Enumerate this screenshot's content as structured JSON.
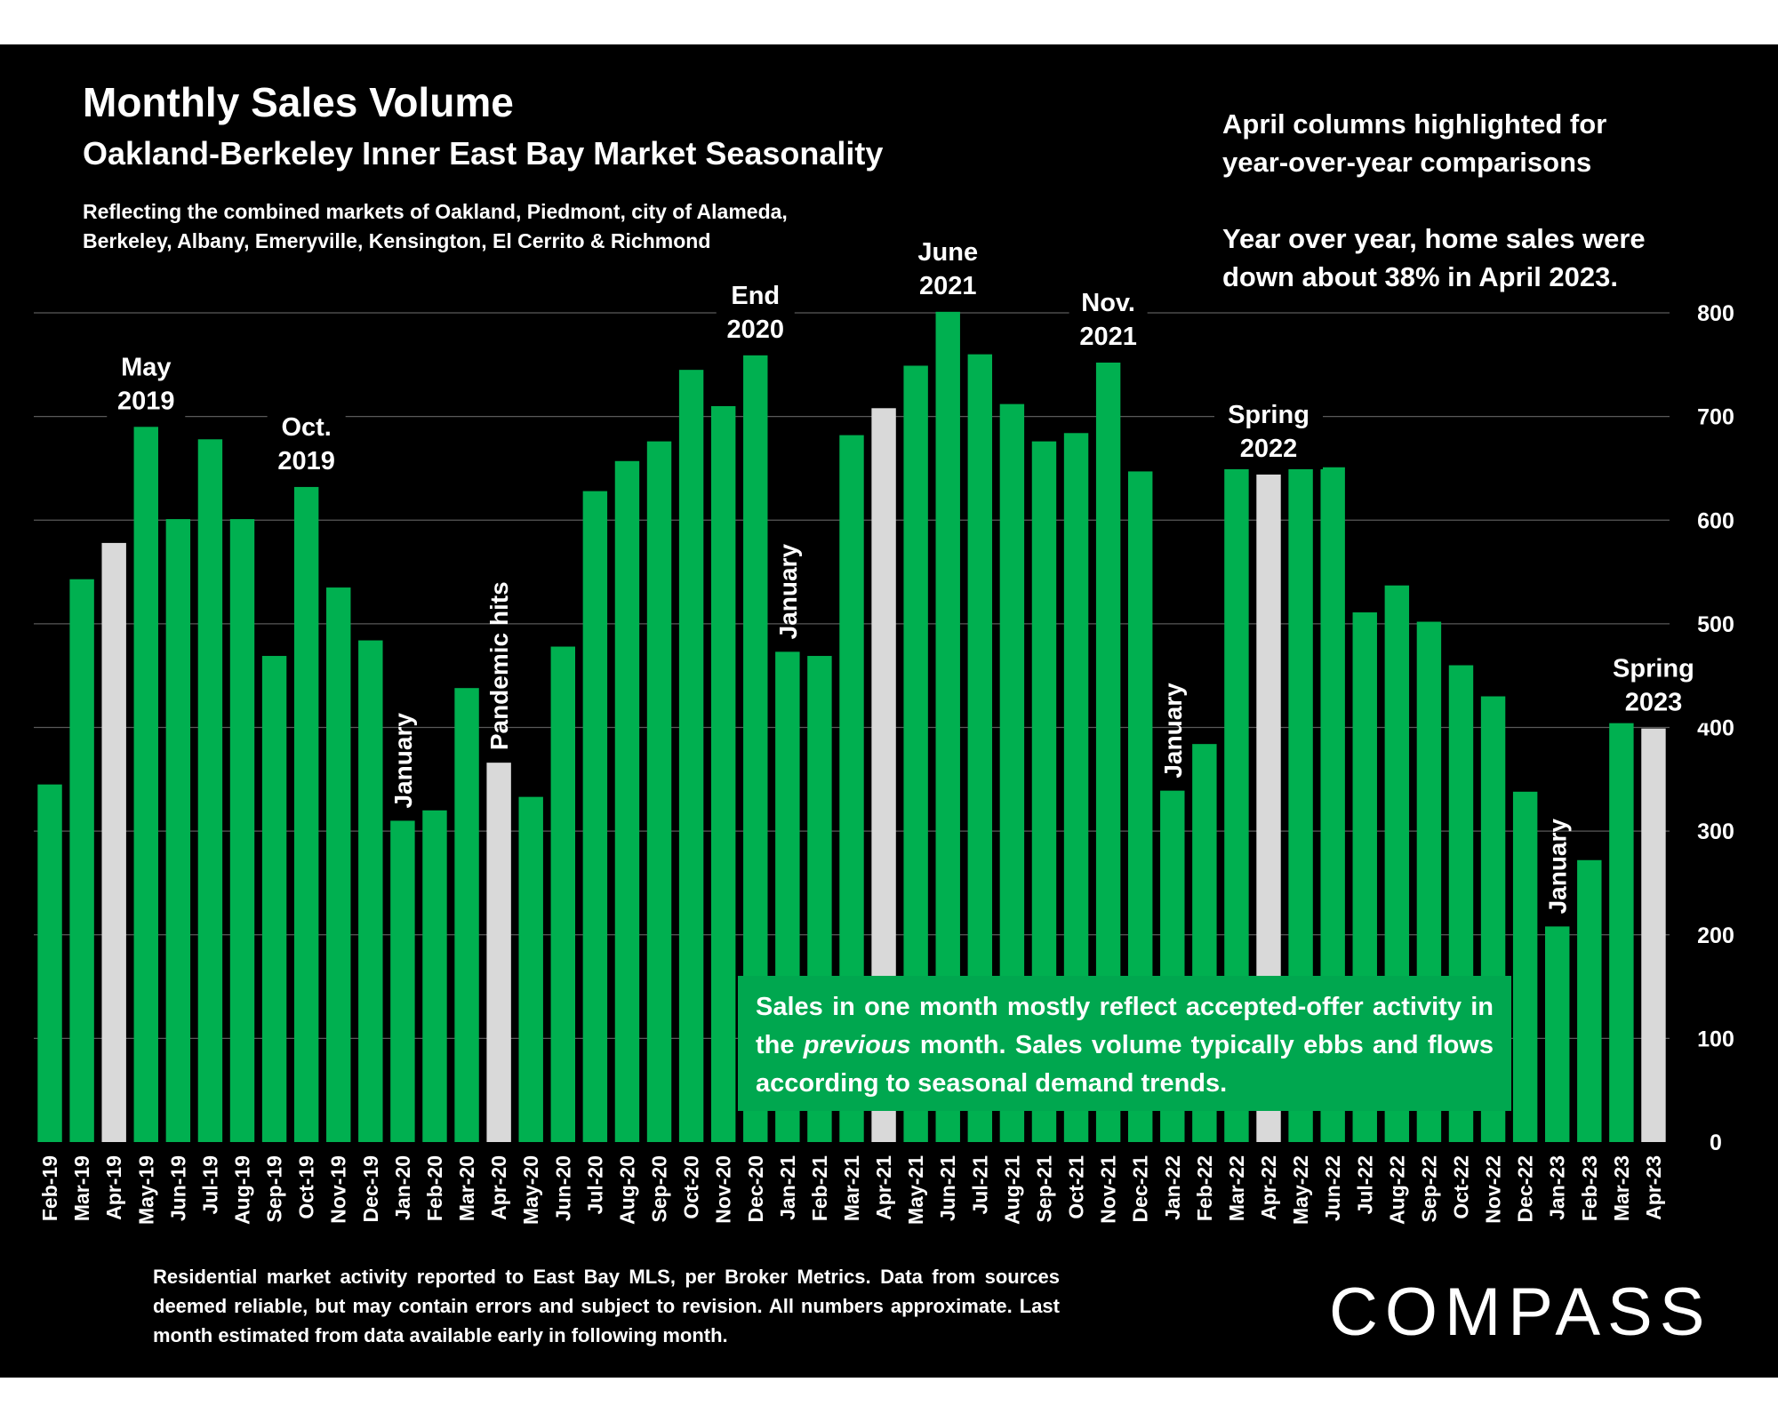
{
  "title": "Monthly Sales Volume",
  "subtitle": "Oakland-Berkeley Inner East Bay Market Seasonality",
  "note": "Reflecting the combined markets of Oakland, Piedmont, city of Alameda,\nBerkeley, Albany, Emeryville, Kensington, El Cerrito & Richmond",
  "side_note": "April columns highlighted for\nyear-over-year comparisons\n\nYear over year, home sales were\ndown about 38% in April 2023.",
  "callout": {
    "part1": "Sales in one month mostly reflect accepted-offer activity in the ",
    "emphasis": "previous",
    "part2": " month. Sales volume typically ebbs and flows according to seasonal demand trends."
  },
  "footer": "Residential market activity reported to East Bay MLS, per Broker Metrics. Data from sources deemed reliable, but may contain errors and subject to revision. All numbers approximate. Last month estimated from data available early in following month.",
  "logo": "COMPASS",
  "colors": {
    "background": "#000000",
    "bar": "#00b050",
    "highlight": "#d9d9d9",
    "text": "#ffffff",
    "grid": "#595959"
  },
  "chart_data": {
    "type": "bar",
    "title": "Monthly Sales Volume",
    "subtitle": "Oakland-Berkeley Inner East Bay Market Seasonality",
    "ylim": [
      0,
      800
    ],
    "yticks": [
      0,
      100,
      200,
      300,
      400,
      500,
      600,
      700,
      800
    ],
    "grid": true,
    "y_axis_side": "right",
    "categories": [
      "Feb-19",
      "Mar-19",
      "Apr-19",
      "May-19",
      "Jun-19",
      "Jul-19",
      "Aug-19",
      "Sep-19",
      "Oct-19",
      "Nov-19",
      "Dec-19",
      "Jan-20",
      "Feb-20",
      "Mar-20",
      "Apr-20",
      "May-20",
      "Jun-20",
      "Jul-20",
      "Aug-20",
      "Sep-20",
      "Oct-20",
      "Nov-20",
      "Dec-20",
      "Jan-21",
      "Feb-21",
      "Mar-21",
      "Apr-21",
      "May-21",
      "Jun-21",
      "Jul-21",
      "Aug-21",
      "Sep-21",
      "Oct-21",
      "Nov-21",
      "Dec-21",
      "Jan-22",
      "Feb-22",
      "Mar-22",
      "Apr-22",
      "May-22",
      "Jun-22",
      "Jul-22",
      "Aug-22",
      "Sep-22",
      "Oct-22",
      "Nov-22",
      "Dec-22",
      "Jan-23",
      "Feb-23",
      "Mar-23",
      "Apr-23"
    ],
    "values": [
      345,
      543,
      578,
      690,
      601,
      678,
      601,
      469,
      632,
      535,
      484,
      310,
      320,
      438,
      366,
      333,
      478,
      628,
      657,
      676,
      745,
      710,
      759,
      473,
      469,
      682,
      708,
      749,
      801,
      760,
      712,
      676,
      684,
      752,
      647,
      339,
      384,
      664,
      644,
      686,
      651,
      511,
      537,
      502,
      460,
      430,
      338,
      208,
      272,
      423,
      399
    ],
    "highlighted": [
      "Apr-19",
      "Apr-20",
      "Apr-21",
      "Apr-22",
      "Apr-23"
    ],
    "annotations": [
      {
        "text": "May\n2019",
        "category": "May-19",
        "orientation": "horizontal"
      },
      {
        "text": "Oct.\n2019",
        "category": "Oct-19",
        "orientation": "horizontal"
      },
      {
        "text": "January",
        "category": "Jan-20",
        "orientation": "vertical"
      },
      {
        "text": "Pandemic hits",
        "category": "Apr-20",
        "orientation": "vertical"
      },
      {
        "text": "End\n2020",
        "category": "Dec-20",
        "orientation": "horizontal"
      },
      {
        "text": "January",
        "category": "Jan-21",
        "orientation": "vertical"
      },
      {
        "text": "June\n2021",
        "category": "Jun-21",
        "orientation": "horizontal"
      },
      {
        "text": "Nov.\n2021",
        "category": "Nov-21",
        "orientation": "horizontal"
      },
      {
        "text": "January",
        "category": "Jan-22",
        "orientation": "vertical"
      },
      {
        "text": "Spring\n2022",
        "category": "Apr-22",
        "orientation": "horizontal"
      },
      {
        "text": "January",
        "category": "Jan-23",
        "orientation": "vertical"
      },
      {
        "text": "Spring\n2023",
        "category": "Apr-23",
        "orientation": "horizontal"
      }
    ]
  }
}
